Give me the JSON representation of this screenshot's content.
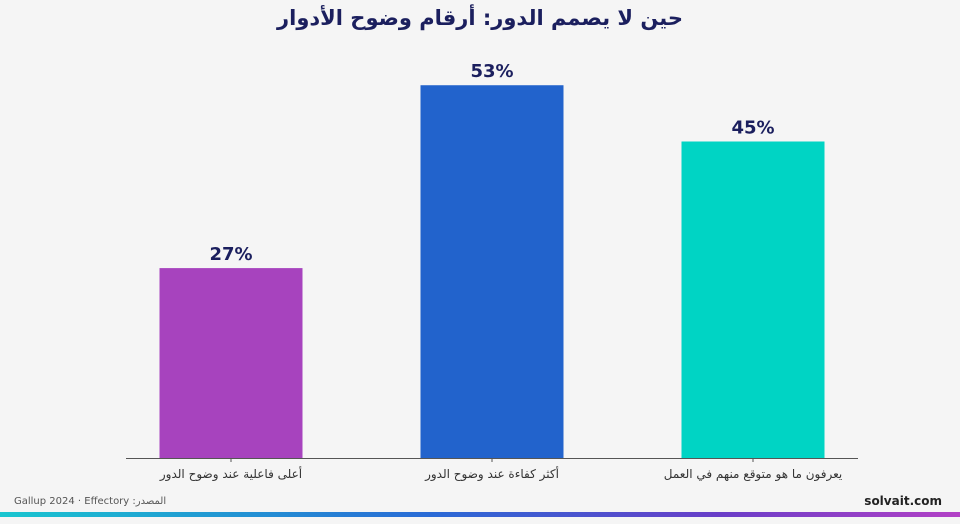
{
  "title": "حين لا يصمم الدور: أرقام وضوح الأدوار",
  "source": "Gallup 2024 · Effectory :المصدر",
  "brand": "solvait.com",
  "chart_data": {
    "type": "bar",
    "categories": [
      "أعلى فاعلية عند وضوح الدور",
      "أكثر كفاءة عند وضوح الدور",
      "يعرفون ما هو متوقع منهم في العمل"
    ],
    "values": [
      27,
      53,
      45
    ],
    "value_labels": [
      "27%",
      "53%",
      "45%"
    ],
    "colors": [
      "#a743be",
      "#2263cc",
      "#00d4c4"
    ],
    "ylim": [
      0,
      60
    ],
    "grid": false,
    "legend": "none"
  }
}
